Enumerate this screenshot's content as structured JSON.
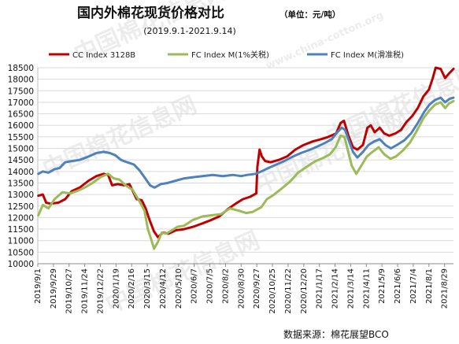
{
  "chart_data": {
    "type": "line",
    "title": "国内外棉花现货价格对比",
    "unit_note": "（单位：元/吨）",
    "subtitle": "(2019.9.1-2021.9.14)",
    "source": "数据来源：棉花展望BCO",
    "ylim": [
      10000,
      18500
    ],
    "y_ticks": [
      10000,
      10500,
      11000,
      11500,
      12000,
      12500,
      13000,
      13500,
      14000,
      14500,
      15000,
      15500,
      16000,
      16500,
      17000,
      17500,
      18000,
      18500
    ],
    "x_range": [
      "2019/9/1",
      "2021/9/14"
    ],
    "x_ticks": [
      "2019/9/1",
      "2019/9/29",
      "2019/10/27",
      "2019/11/24",
      "2019/12/22",
      "2020/1/19",
      "2020/2/16",
      "2020/3/15",
      "2020/4/12",
      "2020/5/10",
      "2020/6/7",
      "2020/7/5",
      "2020/8/2",
      "2020/8/30",
      "2020/9/27",
      "2020/10/25",
      "2020/11/22",
      "2020/12/20",
      "2021/1/17",
      "2021/2/14",
      "2021/3/14",
      "2021/4/11",
      "2021/5/9",
      "2021/6/6",
      "2021/7/4",
      "2021/8/1",
      "2021/8/29"
    ],
    "grid": true,
    "legend_position": "top",
    "series": [
      {
        "name": "CC Index 3128B",
        "color": "#c00000",
        "points": [
          [
            "2019/9/2",
            12950
          ],
          [
            "2019/9/10",
            13000
          ],
          [
            "2019/9/16",
            12650
          ],
          [
            "2019/9/24",
            12600
          ],
          [
            "2019/10/8",
            12650
          ],
          [
            "2019/10/20",
            12800
          ],
          [
            "2019/11/1",
            13150
          ],
          [
            "2019/11/15",
            13300
          ],
          [
            "2019/12/1",
            13600
          ],
          [
            "2019/12/15",
            13800
          ],
          [
            "2019/12/28",
            13900
          ],
          [
            "2020/1/5",
            13850
          ],
          [
            "2020/1/12",
            13400
          ],
          [
            "2020/1/22",
            13450
          ],
          [
            "2020/2/3",
            13400
          ],
          [
            "2020/2/12",
            13450
          ],
          [
            "2020/2/25",
            12800
          ],
          [
            "2020/3/5",
            12750
          ],
          [
            "2020/3/12",
            12400
          ],
          [
            "2020/3/19",
            11900
          ],
          [
            "2020/3/27",
            11400
          ],
          [
            "2020/4/3",
            11150
          ],
          [
            "2020/4/12",
            11350
          ],
          [
            "2020/4/22",
            11300
          ],
          [
            "2020/5/5",
            11450
          ],
          [
            "2020/5/20",
            11500
          ],
          [
            "2020/6/5",
            11600
          ],
          [
            "2020/6/22",
            11750
          ],
          [
            "2020/7/8",
            11900
          ],
          [
            "2020/7/22",
            12050
          ],
          [
            "2020/8/8",
            12400
          ],
          [
            "2020/8/20",
            12600
          ],
          [
            "2020/9/2",
            12800
          ],
          [
            "2020/9/15",
            12900
          ],
          [
            "2020/9/26",
            13050
          ],
          [
            "2020/9/28",
            14200
          ],
          [
            "2020/10/2",
            14950
          ],
          [
            "2020/10/6",
            14650
          ],
          [
            "2020/10/12",
            14450
          ],
          [
            "2020/10/22",
            14400
          ],
          [
            "2020/11/5",
            14500
          ],
          [
            "2020/11/20",
            14650
          ],
          [
            "2020/12/5",
            14950
          ],
          [
            "2020/12/20",
            15150
          ],
          [
            "2021/1/5",
            15300
          ],
          [
            "2021/1/20",
            15400
          ],
          [
            "2021/2/2",
            15500
          ],
          [
            "2021/2/16",
            15650
          ],
          [
            "2021/2/24",
            16100
          ],
          [
            "2021/3/2",
            16200
          ],
          [
            "2021/3/10",
            15550
          ],
          [
            "2021/3/18",
            15050
          ],
          [
            "2021/3/26",
            14950
          ],
          [
            "2021/4/5",
            15150
          ],
          [
            "2021/4/13",
            15900
          ],
          [
            "2021/4/19",
            16000
          ],
          [
            "2021/4/26",
            15700
          ],
          [
            "2021/5/5",
            15900
          ],
          [
            "2021/5/13",
            15650
          ],
          [
            "2021/5/22",
            15550
          ],
          [
            "2021/6/2",
            15650
          ],
          [
            "2021/6/12",
            15800
          ],
          [
            "2021/6/22",
            16150
          ],
          [
            "2021/7/2",
            16400
          ],
          [
            "2021/7/12",
            16750
          ],
          [
            "2021/7/22",
            17250
          ],
          [
            "2021/8/1",
            17550
          ],
          [
            "2021/8/8",
            18050
          ],
          [
            "2021/8/13",
            18500
          ],
          [
            "2021/8/22",
            18450
          ],
          [
            "2021/8/30",
            18050
          ],
          [
            "2021/9/6",
            18250
          ],
          [
            "2021/9/14",
            18450
          ]
        ]
      },
      {
        "name": "FC Index M(1%关税)",
        "color": "#9bbb59",
        "points": [
          [
            "2019/9/2",
            12100
          ],
          [
            "2019/9/10",
            12550
          ],
          [
            "2019/9/20",
            12400
          ],
          [
            "2019/10/1",
            12800
          ],
          [
            "2019/10/15",
            13100
          ],
          [
            "2019/10/29",
            13050
          ],
          [
            "2019/11/10",
            13150
          ],
          [
            "2019/11/24",
            13300
          ],
          [
            "2019/12/8",
            13500
          ],
          [
            "2019/12/22",
            13750
          ],
          [
            "2020/1/5",
            13900
          ],
          [
            "2020/1/15",
            13700
          ],
          [
            "2020/1/25",
            13650
          ],
          [
            "2020/2/5",
            13400
          ],
          [
            "2020/2/18",
            13200
          ],
          [
            "2020/3/1",
            12700
          ],
          [
            "2020/3/10",
            12300
          ],
          [
            "2020/3/16",
            11500
          ],
          [
            "2020/3/22",
            11050
          ],
          [
            "2020/3/27",
            10650
          ],
          [
            "2020/4/3",
            10950
          ],
          [
            "2020/4/10",
            11350
          ],
          [
            "2020/4/18",
            11300
          ],
          [
            "2020/4/28",
            11450
          ],
          [
            "2020/5/8",
            11600
          ],
          [
            "2020/5/20",
            11650
          ],
          [
            "2020/6/5",
            11900
          ],
          [
            "2020/6/22",
            12050
          ],
          [
            "2020/7/8",
            12100
          ],
          [
            "2020/7/25",
            12150
          ],
          [
            "2020/8/10",
            12400
          ],
          [
            "2020/8/25",
            12300
          ],
          [
            "2020/9/8",
            12200
          ],
          [
            "2020/9/20",
            12250
          ],
          [
            "2020/10/5",
            12450
          ],
          [
            "2020/10/15",
            12800
          ],
          [
            "2020/10/28",
            13000
          ],
          [
            "2020/11/10",
            13250
          ],
          [
            "2020/11/25",
            13550
          ],
          [
            "2020/12/10",
            13950
          ],
          [
            "2020/12/25",
            14200
          ],
          [
            "2021/1/10",
            14450
          ],
          [
            "2021/1/25",
            14600
          ],
          [
            "2021/2/5",
            14750
          ],
          [
            "2021/2/15",
            15050
          ],
          [
            "2021/2/24",
            15550
          ],
          [
            "2021/3/3",
            15500
          ],
          [
            "2021/3/10",
            14800
          ],
          [
            "2021/3/16",
            14250
          ],
          [
            "2021/3/24",
            13900
          ],
          [
            "2021/4/2",
            14250
          ],
          [
            "2021/4/12",
            14650
          ],
          [
            "2021/4/22",
            14850
          ],
          [
            "2021/5/3",
            15050
          ],
          [
            "2021/5/13",
            14750
          ],
          [
            "2021/5/24",
            14550
          ],
          [
            "2021/6/3",
            14650
          ],
          [
            "2021/6/15",
            14900
          ],
          [
            "2021/6/28",
            15250
          ],
          [
            "2021/7/10",
            15750
          ],
          [
            "2021/7/22",
            16300
          ],
          [
            "2021/8/2",
            16650
          ],
          [
            "2021/8/12",
            16900
          ],
          [
            "2021/8/22",
            17000
          ],
          [
            "2021/8/30",
            16750
          ],
          [
            "2021/9/6",
            16950
          ],
          [
            "2021/9/14",
            17050
          ]
        ]
      },
      {
        "name": "FC Index M(滑准税)",
        "color": "#4f81bd",
        "points": [
          [
            "2019/9/2",
            13900
          ],
          [
            "2019/9/10",
            14000
          ],
          [
            "2019/9/20",
            13950
          ],
          [
            "2019/10/1",
            14100
          ],
          [
            "2019/10/10",
            14150
          ],
          [
            "2019/10/20",
            14400
          ],
          [
            "2019/11/1",
            14450
          ],
          [
            "2019/11/15",
            14500
          ],
          [
            "2019/12/1",
            14650
          ],
          [
            "2019/12/15",
            14800
          ],
          [
            "2019/12/28",
            14850
          ],
          [
            "2020/1/8",
            14800
          ],
          [
            "2020/1/18",
            14700
          ],
          [
            "2020/1/28",
            14500
          ],
          [
            "2020/2/8",
            14400
          ],
          [
            "2020/2/20",
            14300
          ],
          [
            "2020/3/1",
            14050
          ],
          [
            "2020/3/10",
            13750
          ],
          [
            "2020/3/20",
            13400
          ],
          [
            "2020/3/28",
            13300
          ],
          [
            "2020/4/8",
            13450
          ],
          [
            "2020/4/20",
            13500
          ],
          [
            "2020/5/5",
            13600
          ],
          [
            "2020/5/20",
            13700
          ],
          [
            "2020/6/5",
            13750
          ],
          [
            "2020/6/22",
            13800
          ],
          [
            "2020/7/10",
            13850
          ],
          [
            "2020/7/28",
            13800
          ],
          [
            "2020/8/15",
            13850
          ],
          [
            "2020/8/30",
            13800
          ],
          [
            "2020/9/10",
            13850
          ],
          [
            "2020/9/25",
            13900
          ],
          [
            "2020/10/5",
            14000
          ],
          [
            "2020/10/18",
            14150
          ],
          [
            "2020/11/1",
            14300
          ],
          [
            "2020/11/15",
            14450
          ],
          [
            "2020/12/1",
            14650
          ],
          [
            "2020/12/15",
            14800
          ],
          [
            "2021/1/1",
            14950
          ],
          [
            "2021/1/15",
            15100
          ],
          [
            "2021/1/28",
            15250
          ],
          [
            "2021/2/8",
            15400
          ],
          [
            "2021/2/18",
            15700
          ],
          [
            "2021/2/26",
            15900
          ],
          [
            "2021/3/4",
            15800
          ],
          [
            "2021/3/12",
            15250
          ],
          [
            "2021/3/18",
            14850
          ],
          [
            "2021/3/26",
            14600
          ],
          [
            "2021/4/5",
            14850
          ],
          [
            "2021/4/15",
            15150
          ],
          [
            "2021/4/25",
            15300
          ],
          [
            "2021/5/5",
            15400
          ],
          [
            "2021/5/15",
            15150
          ],
          [
            "2021/5/25",
            15000
          ],
          [
            "2021/6/5",
            15150
          ],
          [
            "2021/6/18",
            15350
          ],
          [
            "2021/6/30",
            15650
          ],
          [
            "2021/7/12",
            16100
          ],
          [
            "2021/7/24",
            16600
          ],
          [
            "2021/8/2",
            16900
          ],
          [
            "2021/8/12",
            17100
          ],
          [
            "2021/8/22",
            17200
          ],
          [
            "2021/8/30",
            17000
          ],
          [
            "2021/9/7",
            17150
          ],
          [
            "2021/9/14",
            17200
          ]
        ]
      }
    ]
  },
  "watermarks": [
    "中国棉花信息网",
    "www.china-cotton.org",
    "中国棉花信息网",
    "中国棉花信息网",
    "中国棉花信息网",
    "中国棉花信息网"
  ]
}
